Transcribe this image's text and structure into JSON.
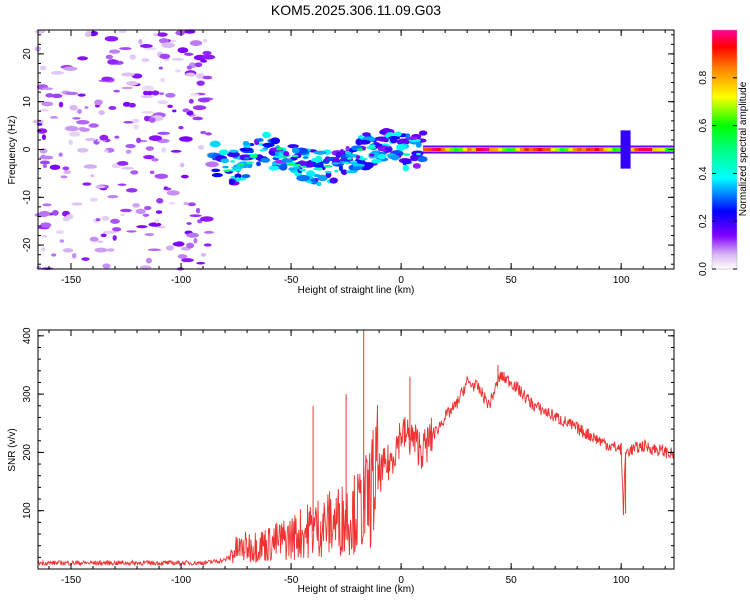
{
  "title": "KOM5.2025.306.11.09.G03",
  "chart_data": [
    {
      "type": "heatmap",
      "title": "KOM5.2025.306.11.09.G03",
      "xlabel": "Height of straight line (km)",
      "ylabel": "Frequency (Hz)",
      "xlim": [
        -165,
        124
      ],
      "ylim": [
        -25,
        25
      ],
      "xticks": [
        -150,
        -100,
        -50,
        0,
        50,
        100
      ],
      "yticks": [
        -20,
        -10,
        0,
        10,
        20
      ],
      "xtick_labels": [
        "-150",
        "-100",
        "-50",
        "0",
        "50",
        "100"
      ],
      "ytick_labels": [
        "-20",
        "-10",
        "0",
        "10",
        "20"
      ],
      "colorbar": {
        "label": "Normalized spectral amplitude",
        "range": [
          0,
          1
        ],
        "ticks": [
          0.0,
          0.2,
          0.4,
          0.6,
          0.8
        ],
        "tick_labels": [
          "0.0",
          "0.2",
          "0.4",
          "0.6",
          "0.8"
        ],
        "colors": [
          "#ffffff",
          "#d0a8f0",
          "#8000ff",
          "#0000ff",
          "#00ffff",
          "#00ff00",
          "#ffff00",
          "#ff8000",
          "#ff0000",
          "#ff00a0"
        ]
      },
      "features": {
        "noise_region_x": [
          -165,
          -85
        ],
        "noise_amplitude": 0.1,
        "scattered_band": {
          "x": [
            -85,
            10
          ],
          "frequency_hz": [
            -8,
            8
          ],
          "amplitude": [
            0.3,
            0.55
          ]
        },
        "main_line": {
          "x": [
            10,
            124
          ],
          "frequency_hz": 0,
          "amplitude": [
            0.6,
            1.0
          ]
        },
        "center_track_x": [
          -85,
          -75,
          -65,
          -55,
          -45,
          -35,
          -25,
          -15,
          -5,
          5,
          10
        ],
        "center_track_hz": [
          -2,
          -4,
          0,
          -1,
          -3,
          -4,
          -3,
          0,
          1,
          -1,
          0
        ],
        "spike_x": 102
      }
    },
    {
      "type": "line",
      "xlabel": "Height of straight line (km)",
      "ylabel": "SNR (v/v)",
      "xlim": [
        -165,
        124
      ],
      "ylim": [
        0,
        410
      ],
      "xticks": [
        -150,
        -100,
        -50,
        0,
        50,
        100
      ],
      "yticks": [
        100,
        200,
        300,
        400
      ],
      "xtick_labels": [
        "-150",
        "-100",
        "-50",
        "0",
        "50",
        "100"
      ],
      "ytick_labels": [
        "100",
        "200",
        "300",
        "400"
      ],
      "line_color": "#ee3333",
      "series": [
        {
          "name": "SNR",
          "x": [
            -165,
            -150,
            -130,
            -110,
            -90,
            -80,
            -75,
            -70,
            -60,
            -50,
            -40,
            -30,
            -20,
            -15,
            -10,
            -5,
            0,
            5,
            10,
            15,
            20,
            25,
            30,
            35,
            40,
            45,
            50,
            55,
            60,
            70,
            80,
            90,
            95,
            100,
            101,
            102,
            110,
            120,
            124
          ],
          "y": [
            10,
            10,
            10,
            10,
            10,
            15,
            30,
            35,
            40,
            50,
            65,
            75,
            90,
            110,
            160,
            180,
            230,
            220,
            200,
            230,
            260,
            280,
            320,
            310,
            280,
            330,
            320,
            300,
            280,
            260,
            240,
            220,
            210,
            205,
            100,
            200,
            210,
            200,
            195
          ]
        }
      ],
      "spikes": [
        {
          "x": -17,
          "y": 410
        },
        {
          "x": -25,
          "y": 300
        },
        {
          "x": -40,
          "y": 280
        },
        {
          "x": 4,
          "y": 330
        },
        {
          "x": 44,
          "y": 350
        },
        {
          "x": 102,
          "y": 95
        }
      ]
    }
  ]
}
